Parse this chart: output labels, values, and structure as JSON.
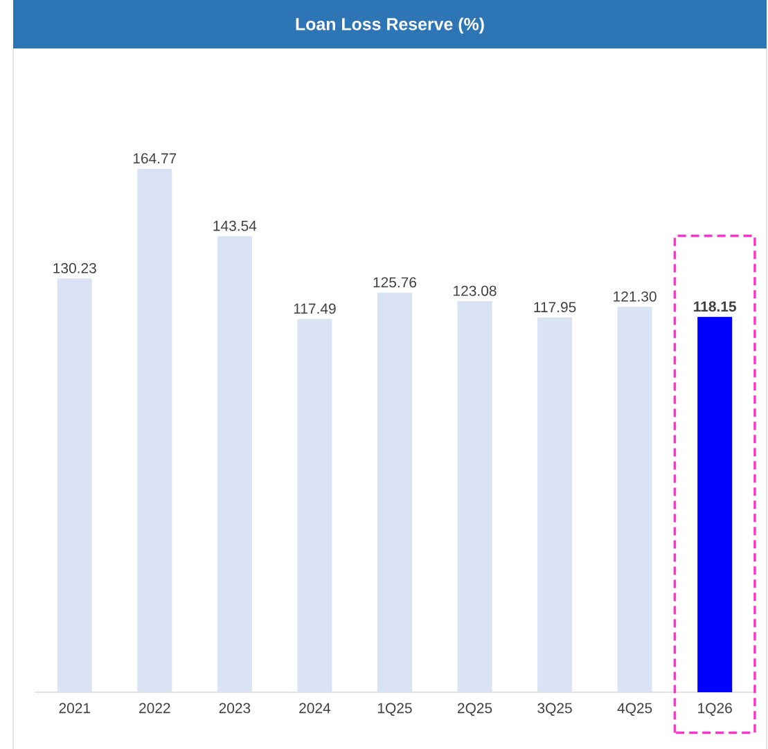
{
  "chart_data": {
    "type": "bar",
    "title": "Loan Loss Reserve (%)",
    "categories": [
      "2021",
      "2022",
      "2023",
      "2024",
      "1Q25",
      "2Q25",
      "3Q25",
      "4Q25",
      "1Q26"
    ],
    "values": [
      130.23,
      164.77,
      143.54,
      117.49,
      125.76,
      123.08,
      117.95,
      121.3,
      118.15
    ],
    "colors": [
      "#dae3f3",
      "#dae3f3",
      "#dae3f3",
      "#dae3f3",
      "#dae3f3",
      "#dae3f3",
      "#dae3f3",
      "#dae3f3",
      "#0000ff"
    ],
    "value_labels": [
      "130.23",
      "164.77",
      "143.54",
      "117.49",
      "125.76",
      "123.08",
      "117.95",
      "121.30",
      "**118.15**"
    ]
  }
}
